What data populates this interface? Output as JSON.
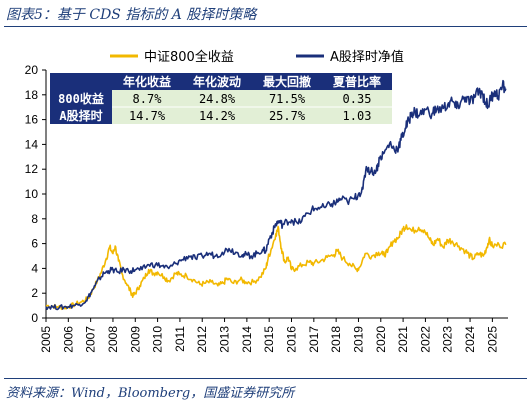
{
  "title": "图表5：基于 CDS 指标的 A 股择时策略",
  "source": "资料来源：Wind，Bloomberg，国盛证券研究所",
  "chart_data": {
    "type": "line",
    "ylim": [
      0,
      20
    ],
    "yticks": [
      0,
      2,
      4,
      6,
      8,
      10,
      12,
      14,
      16,
      18,
      20
    ],
    "xlim": [
      2005,
      2025.7
    ],
    "xticks": [
      "2005",
      "2006",
      "2007",
      "2008",
      "2009",
      "2010",
      "2011",
      "2012",
      "2013",
      "2014",
      "2015",
      "2016",
      "2017",
      "2018",
      "2019",
      "2020",
      "2021",
      "2022",
      "2023",
      "2024",
      "2025"
    ],
    "legend_position": "top-center",
    "grid": false,
    "series": [
      {
        "name": "中证800全收益",
        "color": "#f2b800",
        "points": [
          [
            2005.0,
            1.0
          ],
          [
            2005.3,
            0.95
          ],
          [
            2005.5,
            0.9
          ],
          [
            2005.8,
            0.85
          ],
          [
            2006.0,
            0.9
          ],
          [
            2006.3,
            1.1
          ],
          [
            2006.6,
            1.3
          ],
          [
            2006.9,
            1.6
          ],
          [
            2007.1,
            2.3
          ],
          [
            2007.3,
            3.0
          ],
          [
            2007.5,
            3.8
          ],
          [
            2007.7,
            4.8
          ],
          [
            2007.85,
            5.7
          ],
          [
            2008.0,
            5.2
          ],
          [
            2008.1,
            5.8
          ],
          [
            2008.25,
            4.6
          ],
          [
            2008.4,
            3.6
          ],
          [
            2008.6,
            2.8
          ],
          [
            2008.8,
            2.1
          ],
          [
            2008.9,
            1.8
          ],
          [
            2009.0,
            2.0
          ],
          [
            2009.2,
            2.6
          ],
          [
            2009.4,
            3.2
          ],
          [
            2009.6,
            3.9
          ],
          [
            2009.8,
            3.6
          ],
          [
            2010.0,
            3.7
          ],
          [
            2010.3,
            3.3
          ],
          [
            2010.5,
            3.0
          ],
          [
            2010.8,
            3.6
          ],
          [
            2011.0,
            3.5
          ],
          [
            2011.3,
            3.4
          ],
          [
            2011.6,
            3.1
          ],
          [
            2011.9,
            2.7
          ],
          [
            2012.1,
            2.8
          ],
          [
            2012.4,
            2.9
          ],
          [
            2012.7,
            2.6
          ],
          [
            2012.95,
            2.8
          ],
          [
            2013.1,
            3.2
          ],
          [
            2013.4,
            2.8
          ],
          [
            2013.7,
            3.1
          ],
          [
            2013.95,
            2.9
          ],
          [
            2014.3,
            2.9
          ],
          [
            2014.6,
            3.3
          ],
          [
            2014.85,
            4.0
          ],
          [
            2014.95,
            4.8
          ],
          [
            2015.1,
            5.6
          ],
          [
            2015.3,
            6.8
          ],
          [
            2015.42,
            7.2
          ],
          [
            2015.55,
            5.6
          ],
          [
            2015.7,
            4.5
          ],
          [
            2015.85,
            4.9
          ],
          [
            2016.0,
            3.9
          ],
          [
            2016.2,
            4.0
          ],
          [
            2016.5,
            4.3
          ],
          [
            2016.8,
            4.5
          ],
          [
            2017.0,
            4.4
          ],
          [
            2017.3,
            4.6
          ],
          [
            2017.6,
            4.9
          ],
          [
            2017.9,
            5.1
          ],
          [
            2018.05,
            5.4
          ],
          [
            2018.3,
            4.8
          ],
          [
            2018.6,
            4.4
          ],
          [
            2018.9,
            3.9
          ],
          [
            2019.05,
            4.1
          ],
          [
            2019.3,
            5.2
          ],
          [
            2019.6,
            5.0
          ],
          [
            2019.9,
            5.3
          ],
          [
            2020.1,
            5.1
          ],
          [
            2020.3,
            5.3
          ],
          [
            2020.55,
            6.2
          ],
          [
            2020.8,
            6.5
          ],
          [
            2021.0,
            7.2
          ],
          [
            2021.15,
            7.5
          ],
          [
            2021.4,
            7.0
          ],
          [
            2021.7,
            7.3
          ],
          [
            2021.95,
            7.1
          ],
          [
            2022.2,
            6.3
          ],
          [
            2022.35,
            5.9
          ],
          [
            2022.55,
            6.4
          ],
          [
            2022.8,
            5.7
          ],
          [
            2023.0,
            6.3
          ],
          [
            2023.2,
            6.2
          ],
          [
            2023.5,
            5.8
          ],
          [
            2023.8,
            5.4
          ],
          [
            2024.0,
            5.0
          ],
          [
            2024.15,
            4.8
          ],
          [
            2024.4,
            5.2
          ],
          [
            2024.6,
            5.0
          ],
          [
            2024.75,
            5.7
          ],
          [
            2024.85,
            6.3
          ],
          [
            2025.0,
            5.8
          ],
          [
            2025.3,
            5.9
          ],
          [
            2025.6,
            5.9
          ]
        ]
      },
      {
        "name": "A股择时净值",
        "color": "#1a2f7a",
        "points": [
          [
            2005.0,
            0.9
          ],
          [
            2005.3,
            0.9
          ],
          [
            2005.6,
            0.85
          ],
          [
            2005.9,
            0.9
          ],
          [
            2006.2,
            1.0
          ],
          [
            2006.5,
            1.1
          ],
          [
            2006.8,
            1.4
          ],
          [
            2007.0,
            2.0
          ],
          [
            2007.2,
            2.6
          ],
          [
            2007.4,
            3.2
          ],
          [
            2007.6,
            3.6
          ],
          [
            2007.8,
            3.8
          ],
          [
            2008.0,
            3.9
          ],
          [
            2008.2,
            3.7
          ],
          [
            2008.5,
            3.9
          ],
          [
            2008.8,
            3.8
          ],
          [
            2009.0,
            3.9
          ],
          [
            2009.3,
            3.9
          ],
          [
            2009.6,
            4.3
          ],
          [
            2009.9,
            4.3
          ],
          [
            2010.2,
            4.2
          ],
          [
            2010.5,
            4.0
          ],
          [
            2010.8,
            4.4
          ],
          [
            2011.1,
            4.7
          ],
          [
            2011.4,
            5.0
          ],
          [
            2011.7,
            4.8
          ],
          [
            2012.0,
            5.0
          ],
          [
            2012.3,
            5.2
          ],
          [
            2012.6,
            5.0
          ],
          [
            2012.9,
            5.3
          ],
          [
            2013.2,
            5.6
          ],
          [
            2013.5,
            5.3
          ],
          [
            2013.8,
            5.1
          ],
          [
            2014.0,
            5.1
          ],
          [
            2014.2,
            5.0
          ],
          [
            2014.45,
            5.2
          ],
          [
            2014.7,
            5.5
          ],
          [
            2014.85,
            5.4
          ],
          [
            2015.0,
            6.4
          ],
          [
            2015.15,
            6.9
          ],
          [
            2015.3,
            7.6
          ],
          [
            2015.45,
            7.8
          ],
          [
            2015.6,
            7.5
          ],
          [
            2015.8,
            7.8
          ],
          [
            2016.0,
            7.9
          ],
          [
            2016.3,
            7.6
          ],
          [
            2016.6,
            8.2
          ],
          [
            2016.9,
            8.7
          ],
          [
            2017.2,
            8.9
          ],
          [
            2017.5,
            8.9
          ],
          [
            2017.8,
            9.2
          ],
          [
            2018.0,
            9.3
          ],
          [
            2018.2,
            9.6
          ],
          [
            2018.5,
            9.4
          ],
          [
            2018.8,
            9.6
          ],
          [
            2019.0,
            10.0
          ],
          [
            2019.2,
            10.4
          ],
          [
            2019.35,
            12.2
          ],
          [
            2019.55,
            11.8
          ],
          [
            2019.8,
            11.9
          ],
          [
            2019.95,
            12.9
          ],
          [
            2020.15,
            13.3
          ],
          [
            2020.4,
            14.1
          ],
          [
            2020.6,
            13.6
          ],
          [
            2020.8,
            13.8
          ],
          [
            2020.95,
            14.6
          ],
          [
            2021.1,
            15.3
          ],
          [
            2021.25,
            15.9
          ],
          [
            2021.4,
            16.6
          ],
          [
            2021.55,
            16.6
          ],
          [
            2021.75,
            16.4
          ],
          [
            2022.0,
            16.8
          ],
          [
            2022.3,
            16.5
          ],
          [
            2022.5,
            16.8
          ],
          [
            2022.8,
            16.9
          ],
          [
            2023.0,
            17.2
          ],
          [
            2023.2,
            17.5
          ],
          [
            2023.4,
            16.9
          ],
          [
            2023.6,
            17.5
          ],
          [
            2023.8,
            17.8
          ],
          [
            2024.0,
            17.4
          ],
          [
            2024.2,
            17.8
          ],
          [
            2024.4,
            18.3
          ],
          [
            2024.55,
            18.1
          ],
          [
            2024.7,
            17.4
          ],
          [
            2024.8,
            17.1
          ],
          [
            2024.95,
            17.8
          ],
          [
            2025.1,
            18.3
          ],
          [
            2025.25,
            17.9
          ],
          [
            2025.45,
            18.7
          ],
          [
            2025.6,
            18.5
          ]
        ]
      }
    ],
    "table": {
      "headers": [
        "",
        "年化收益",
        "年化波动",
        "最大回撤",
        "夏普比率"
      ],
      "rows": [
        [
          "800收益",
          "8.7%",
          "24.8%",
          "71.5%",
          "0.35"
        ],
        [
          "A股择时",
          "14.7%",
          "14.2%",
          "25.7%",
          "1.03"
        ]
      ],
      "header_bg": "#1a2f7a",
      "header_color": "#ffffff",
      "body_bg": "#e2efd6"
    }
  }
}
